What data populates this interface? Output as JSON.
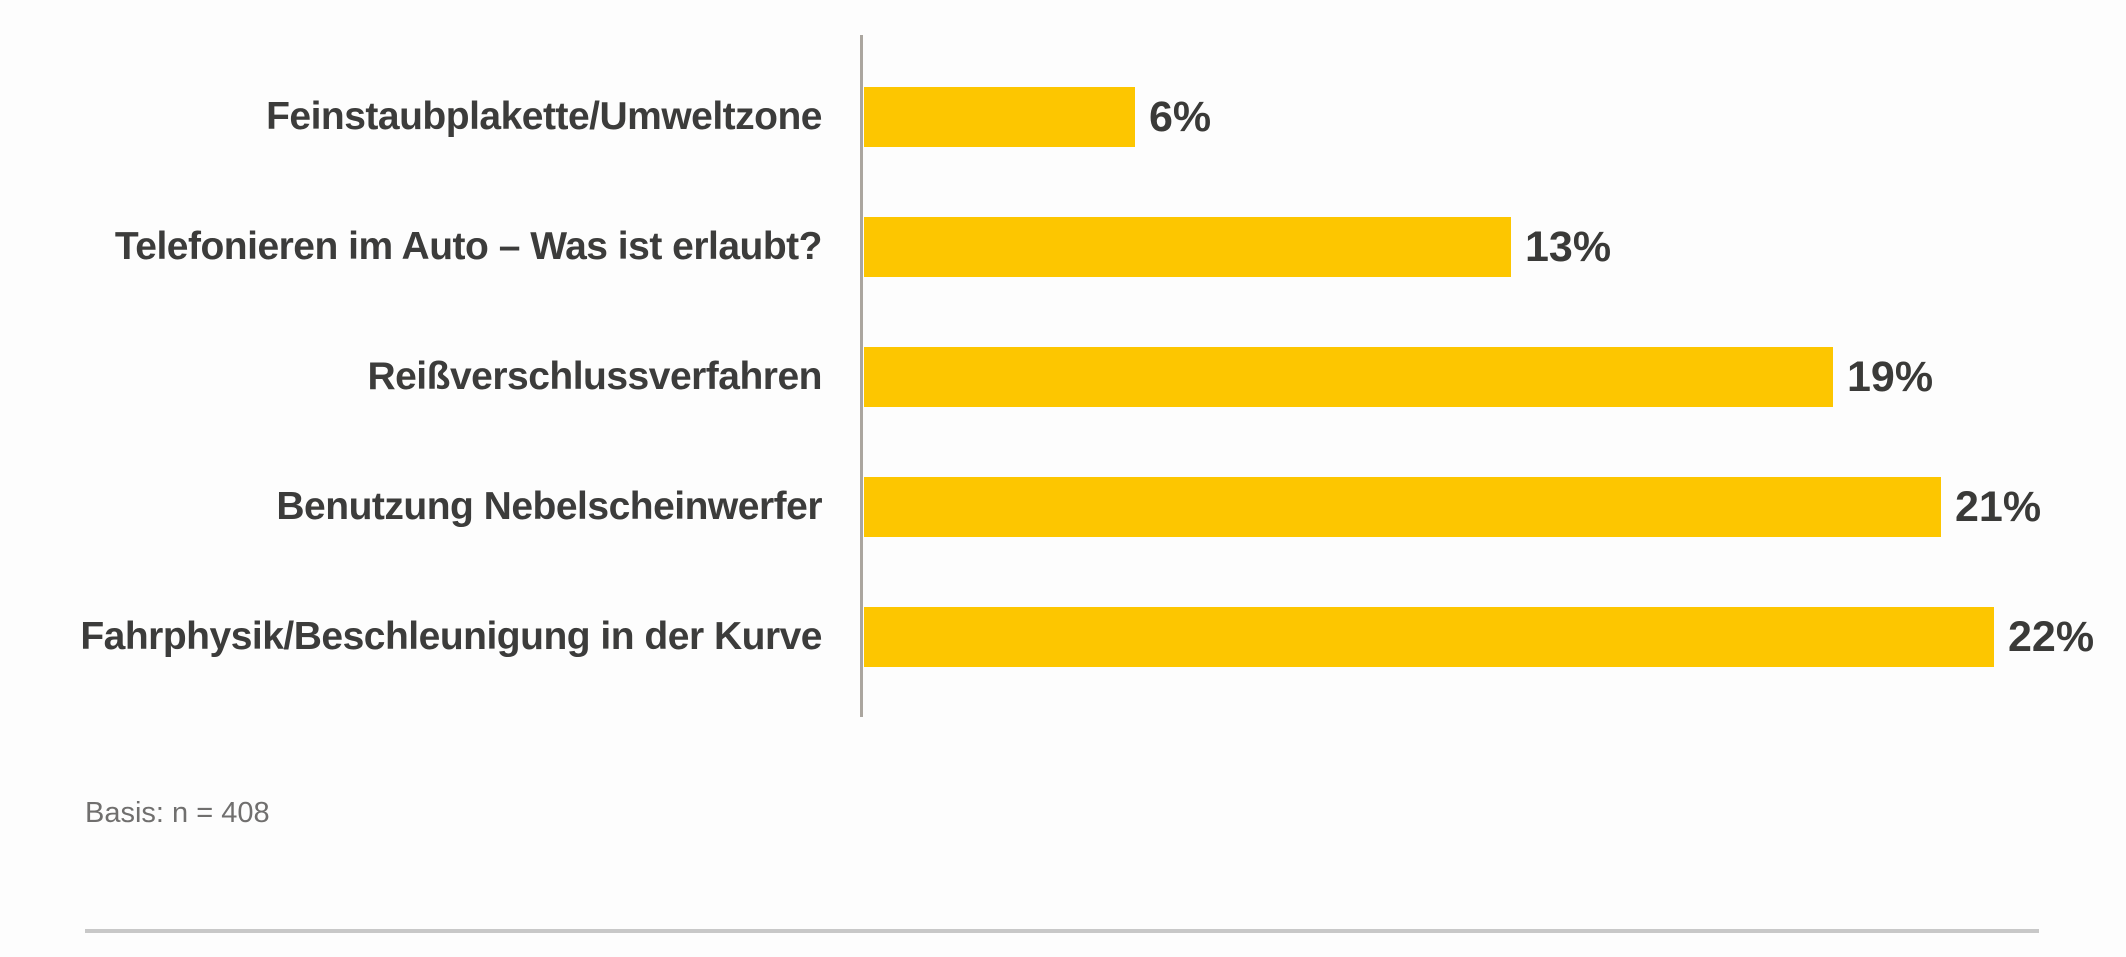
{
  "chart_data": {
    "type": "bar",
    "orientation": "horizontal",
    "title": "",
    "xlabel": "",
    "ylabel": "",
    "categories": [
      "Feinstaubplakette/Umweltzone",
      "Telefonieren im Auto – Was ist erlaubt?",
      "Reißverschlussverfahren",
      "Benutzung Nebelscheinwerfer",
      "Fahrphysik/Beschleunigung in der Kurve"
    ],
    "values": [
      6,
      13,
      19,
      21,
      22
    ],
    "value_labels": [
      "6%",
      "13%",
      "19%",
      "21%",
      "22%"
    ],
    "unit": "%",
    "xlim": [
      0,
      24
    ],
    "grid": false,
    "legend": null,
    "bar_color": "#FDC600"
  },
  "note": {
    "basis_label": "Basis: n = 408"
  },
  "colors": {
    "bar": "#FDC600",
    "axis_line": "#ABA69F",
    "category_text": "#3C3C3B",
    "value_text": "#3A3A38",
    "note_text": "#706F6E",
    "divider": "#C8C8C8",
    "background": "#FDFDFD"
  }
}
